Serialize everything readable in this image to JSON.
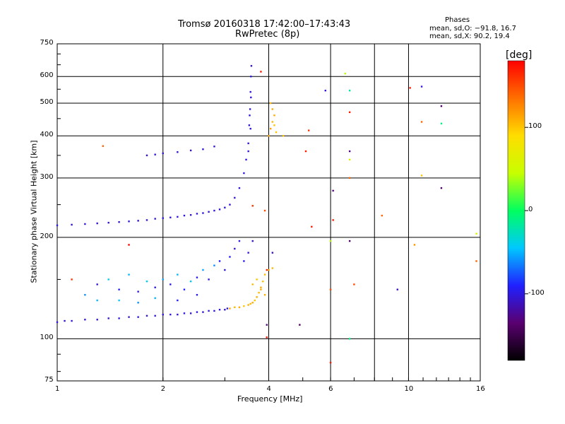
{
  "header": {
    "title_line1": "Tromsø 20160318 17:42:00–17:43:43",
    "title_line2": "RwPretec (8p)"
  },
  "phases_box": {
    "heading": "Phases",
    "line_o": "mean, sd,O: −91.8, 16.7",
    "line_x": "mean, sd,X:  90.2, 19.4"
  },
  "chart_data": {
    "type": "scatter",
    "xlabel": "Frequency [MHz]",
    "ylabel": "Stationary phase Virtual Height [km]",
    "x_scale": "log",
    "y_scale": "log",
    "xlim": [
      1,
      16
    ],
    "ylim": [
      75,
      750
    ],
    "x_ticks": [
      1,
      2,
      4,
      6,
      10,
      16
    ],
    "x_gridlines": [
      2,
      4,
      6,
      8,
      10
    ],
    "y_ticks": [
      75,
      100,
      200,
      300,
      400,
      500,
      600,
      750
    ],
    "y_gridlines": [
      100,
      200,
      300,
      400,
      500,
      600
    ],
    "grid": true,
    "colorbar": {
      "label": "[deg]",
      "range": [
        -180,
        180
      ],
      "ticks": [
        100,
        0,
        -100
      ],
      "colormap": [
        "#000000",
        "#5a0070",
        "#2020ff",
        "#00c8ff",
        "#00ff60",
        "#c8ff00",
        "#ffdd00",
        "#ff7000",
        "#ff0000"
      ]
    },
    "series": [
      {
        "points": [
          [
            1.0,
            112,
            -100
          ],
          [
            1.05,
            113,
            -105
          ],
          [
            1.1,
            113,
            -100
          ],
          [
            1.2,
            114,
            -102
          ],
          [
            1.3,
            114,
            -100
          ],
          [
            1.4,
            115,
            -104
          ],
          [
            1.5,
            115,
            -100
          ],
          [
            1.6,
            116,
            -102
          ],
          [
            1.7,
            116,
            -100
          ],
          [
            1.8,
            117,
            -104
          ],
          [
            1.9,
            117,
            -100
          ],
          [
            2.0,
            118,
            -102
          ],
          [
            2.1,
            118,
            -100
          ],
          [
            2.2,
            118,
            -104
          ],
          [
            2.3,
            119,
            -100
          ],
          [
            2.4,
            119,
            -102
          ],
          [
            2.5,
            120,
            -100
          ],
          [
            2.6,
            120,
            -104
          ],
          [
            2.7,
            121,
            -100
          ],
          [
            2.8,
            121,
            -102
          ],
          [
            2.9,
            122,
            -100
          ],
          [
            3.0,
            122,
            -104
          ],
          [
            3.05,
            123,
            -100
          ]
        ]
      },
      {
        "points": [
          [
            3.1,
            123,
            110
          ],
          [
            3.2,
            124,
            105
          ],
          [
            3.3,
            124,
            110
          ],
          [
            3.4,
            125,
            100
          ],
          [
            3.5,
            126,
            110
          ],
          [
            3.55,
            127,
            105
          ],
          [
            3.6,
            128,
            110
          ],
          [
            3.65,
            130,
            100
          ],
          [
            3.7,
            133,
            110
          ],
          [
            3.75,
            137,
            105
          ],
          [
            3.8,
            142,
            110
          ],
          [
            3.85,
            148,
            100
          ],
          [
            3.9,
            155,
            105
          ],
          [
            4.0,
            160,
            110
          ],
          [
            4.1,
            162,
            105
          ],
          [
            3.7,
            150,
            100
          ],
          [
            3.8,
            140,
            110
          ],
          [
            3.6,
            145,
            105
          ],
          [
            3.9,
            135,
            110
          ]
        ]
      },
      {
        "points": [
          [
            1.0,
            217,
            -100
          ],
          [
            1.1,
            218,
            -105
          ],
          [
            1.2,
            219,
            -100
          ],
          [
            1.3,
            220,
            -102
          ],
          [
            1.4,
            221,
            -100
          ],
          [
            1.5,
            222,
            -104
          ],
          [
            1.6,
            223,
            -100
          ],
          [
            1.7,
            224,
            -105
          ],
          [
            1.8,
            225,
            -100
          ],
          [
            1.9,
            227,
            -102
          ],
          [
            2.0,
            228,
            -100
          ],
          [
            2.1,
            229,
            -104
          ],
          [
            2.2,
            230,
            -100
          ],
          [
            2.3,
            232,
            -102
          ],
          [
            2.4,
            233,
            -100
          ],
          [
            2.5,
            235,
            -104
          ],
          [
            2.6,
            236,
            -100
          ],
          [
            2.7,
            238,
            -102
          ],
          [
            2.8,
            240,
            -100
          ],
          [
            2.9,
            242,
            -104
          ],
          [
            3.0,
            245,
            -100
          ],
          [
            3.1,
            250,
            -102
          ],
          [
            3.2,
            262,
            -100
          ],
          [
            3.3,
            280,
            -104
          ],
          [
            3.4,
            310,
            -100
          ],
          [
            3.45,
            340,
            -102
          ],
          [
            3.5,
            380,
            -100
          ],
          [
            3.52,
            430,
            -104
          ],
          [
            3.54,
            480,
            -100
          ],
          [
            3.55,
            540,
            -102
          ],
          [
            3.56,
            600,
            -100
          ],
          [
            3.57,
            645,
            -104
          ],
          [
            3.5,
            360,
            -100
          ],
          [
            3.55,
            420,
            -102
          ],
          [
            3.53,
            460,
            -100
          ],
          [
            3.56,
            520,
            -104
          ]
        ]
      },
      {
        "points": [
          [
            1.8,
            350,
            -105
          ],
          [
            1.9,
            352,
            -100
          ],
          [
            2.0,
            355,
            -102
          ],
          [
            2.2,
            358,
            -100
          ],
          [
            2.4,
            362,
            -104
          ],
          [
            2.6,
            365,
            -100
          ],
          [
            2.8,
            372,
            -102
          ]
        ]
      },
      {
        "points": [
          [
            1.2,
            135,
            -60
          ],
          [
            1.3,
            145,
            -100
          ],
          [
            1.4,
            150,
            -40
          ],
          [
            1.5,
            140,
            -90
          ],
          [
            1.6,
            155,
            -50
          ],
          [
            1.7,
            138,
            -100
          ],
          [
            1.8,
            148,
            -45
          ],
          [
            1.9,
            142,
            -95
          ],
          [
            2.0,
            150,
            -55
          ],
          [
            2.1,
            145,
            -100
          ],
          [
            2.2,
            155,
            -50
          ],
          [
            2.3,
            140,
            -90
          ],
          [
            2.4,
            148,
            -45
          ],
          [
            2.5,
            152,
            -95
          ],
          [
            2.6,
            160,
            -55
          ],
          [
            2.7,
            150,
            -100
          ],
          [
            2.8,
            165,
            -60
          ],
          [
            2.9,
            170,
            -95
          ],
          [
            3.0,
            160,
            -100
          ],
          [
            3.1,
            175,
            -90
          ],
          [
            3.2,
            185,
            -105
          ],
          [
            3.3,
            195,
            -100
          ],
          [
            3.4,
            170,
            -95
          ],
          [
            3.5,
            180,
            -100
          ],
          [
            3.6,
            195,
            -105
          ],
          [
            1.3,
            130,
            -50
          ],
          [
            1.5,
            130,
            -45
          ],
          [
            1.7,
            128,
            -60
          ],
          [
            1.9,
            132,
            -50
          ],
          [
            2.2,
            130,
            -90
          ],
          [
            2.5,
            135,
            -100
          ]
        ]
      },
      {
        "points": [
          [
            4.0,
            400,
            110
          ],
          [
            4.05,
            420,
            115
          ],
          [
            4.1,
            440,
            105
          ],
          [
            4.15,
            460,
            110
          ],
          [
            4.2,
            410,
            100
          ],
          [
            4.1,
            480,
            110
          ],
          [
            4.05,
            500,
            105
          ],
          [
            4.15,
            430,
            100
          ],
          [
            3.9,
            240,
            150
          ],
          [
            3.6,
            248,
            160
          ]
        ]
      },
      {
        "points": [
          [
            1.35,
            373,
            140
          ],
          [
            1.6,
            190,
            180
          ],
          [
            1.1,
            150,
            160
          ],
          [
            3.8,
            620,
            170
          ],
          [
            3.95,
            160,
            170
          ],
          [
            3.95,
            101,
            175
          ],
          [
            4.4,
            400,
            100
          ],
          [
            5.1,
            360,
            170
          ],
          [
            5.2,
            415,
            160
          ],
          [
            5.3,
            215,
            170
          ],
          [
            5.8,
            545,
            -100
          ],
          [
            6.0,
            195,
            40
          ],
          [
            6.0,
            85,
            170
          ],
          [
            6.1,
            275,
            -130
          ],
          [
            6.1,
            225,
            170
          ],
          [
            6.6,
            612,
            40
          ],
          [
            6.8,
            545,
            -20
          ],
          [
            6.8,
            470,
            170
          ],
          [
            6.8,
            360,
            -130
          ],
          [
            6.8,
            340,
            60
          ],
          [
            6.8,
            300,
            140
          ],
          [
            6.8,
            100,
            -10
          ],
          [
            8.4,
            232,
            140
          ],
          [
            9.3,
            140,
            -110
          ],
          [
            10.1,
            555,
            170
          ],
          [
            10.4,
            190,
            120
          ],
          [
            10.9,
            560,
            -100
          ],
          [
            10.9,
            440,
            140
          ],
          [
            10.9,
            305,
            100
          ],
          [
            12.4,
            490,
            -140
          ],
          [
            12.4,
            435,
            -10
          ],
          [
            12.4,
            280,
            -140
          ],
          [
            15.6,
            170,
            140
          ],
          [
            15.6,
            205,
            60
          ],
          [
            6.8,
            195,
            -140
          ],
          [
            6.0,
            140,
            150
          ],
          [
            7.0,
            145,
            150
          ],
          [
            4.1,
            180,
            -110
          ],
          [
            4.9,
            110,
            -140
          ],
          [
            3.95,
            110,
            -130
          ]
        ]
      }
    ]
  }
}
